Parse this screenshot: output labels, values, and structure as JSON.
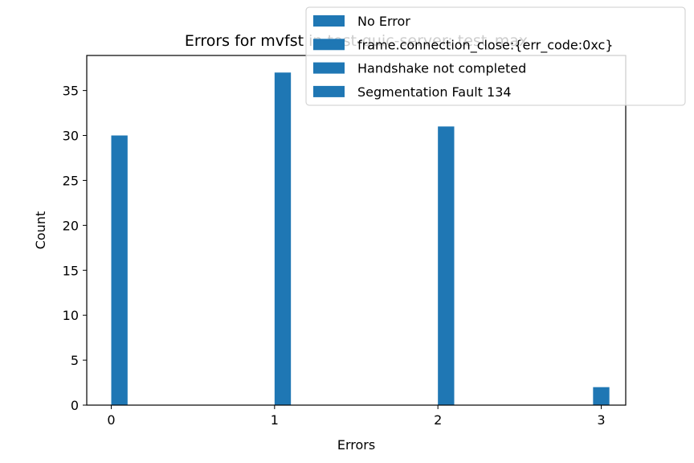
{
  "chart_data": {
    "type": "bar",
    "title": "Errors for mvfst in test-quic-server: test_max",
    "xlabel": "Errors",
    "ylabel": "Count",
    "xlim": [
      -0.15,
      3.15
    ],
    "ylim": [
      0,
      38.9
    ],
    "x_ticks": [
      0,
      1,
      2,
      3
    ],
    "y_ticks": [
      0,
      5,
      10,
      15,
      20,
      25,
      30,
      35
    ],
    "bar_width": 0.1,
    "bar_color": "#1f77b4",
    "legend_location": "upper right",
    "series": [
      {
        "name": "No Error",
        "x": [
          0.05
        ],
        "values": [
          30
        ]
      },
      {
        "name": "frame.connection_close:{err_code:0xc}",
        "x": [
          1.05
        ],
        "values": [
          37
        ]
      },
      {
        "name": "Handshake not completed",
        "x": [
          2.05
        ],
        "values": [
          31
        ]
      },
      {
        "name": "Segmentation Fault 134",
        "x": [
          3.0
        ],
        "values": [
          2
        ]
      }
    ]
  }
}
